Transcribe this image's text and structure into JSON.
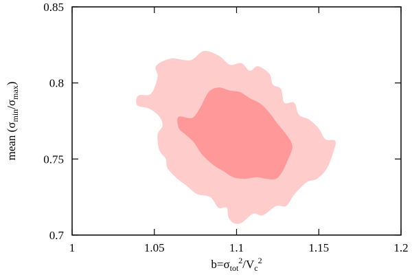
{
  "chart_data": {
    "type": "contour",
    "xlabel": {
      "base": "b=σ",
      "sub1": "tot",
      "sup1": "2",
      "mid": "/V",
      "sub2": "c",
      "sup2": "2"
    },
    "ylabel": {
      "base": "mean (σ",
      "sub1": "min",
      "mid": "/σ",
      "sub2": "max",
      "end": ")"
    },
    "xlim": [
      1.0,
      1.2
    ],
    "ylim": [
      0.7,
      0.85
    ],
    "xticks": [
      1.0,
      1.05,
      1.1,
      1.15,
      1.2
    ],
    "xtick_labels": [
      "1",
      "1.05",
      "1.1",
      "1.15",
      "1.2"
    ],
    "yticks": [
      0.7,
      0.75,
      0.8,
      0.85
    ],
    "ytick_labels": [
      "0.7",
      "0.75",
      "0.8",
      "0.85"
    ],
    "grid": false,
    "regions": [
      {
        "name": "outer",
        "color": "#ffcccc",
        "points": [
          [
            1.041,
            0.792
          ],
          [
            1.048,
            0.793
          ],
          [
            1.052,
            0.804
          ],
          [
            1.051,
            0.811
          ],
          [
            1.06,
            0.816
          ],
          [
            1.072,
            0.815
          ],
          [
            1.08,
            0.821
          ],
          [
            1.089,
            0.818
          ],
          [
            1.096,
            0.812
          ],
          [
            1.103,
            0.813
          ],
          [
            1.108,
            0.808
          ],
          [
            1.113,
            0.811
          ],
          [
            1.12,
            0.806
          ],
          [
            1.122,
            0.799
          ],
          [
            1.127,
            0.796
          ],
          [
            1.129,
            0.787
          ],
          [
            1.135,
            0.787
          ],
          [
            1.138,
            0.779
          ],
          [
            1.144,
            0.776
          ],
          [
            1.15,
            0.77
          ],
          [
            1.154,
            0.763
          ],
          [
            1.16,
            0.762
          ],
          [
            1.159,
            0.755
          ],
          [
            1.155,
            0.744
          ],
          [
            1.149,
            0.737
          ],
          [
            1.143,
            0.735
          ],
          [
            1.137,
            0.729
          ],
          [
            1.134,
            0.725
          ],
          [
            1.13,
            0.719
          ],
          [
            1.124,
            0.719
          ],
          [
            1.116,
            0.713
          ],
          [
            1.11,
            0.714
          ],
          [
            1.103,
            0.708
          ],
          [
            1.098,
            0.708
          ],
          [
            1.095,
            0.712
          ],
          [
            1.094,
            0.718
          ],
          [
            1.089,
            0.718
          ],
          [
            1.084,
            0.725
          ],
          [
            1.076,
            0.727
          ],
          [
            1.069,
            0.733
          ],
          [
            1.064,
            0.737
          ],
          [
            1.058,
            0.744
          ],
          [
            1.057,
            0.75
          ],
          [
            1.053,
            0.756
          ],
          [
            1.052,
            0.766
          ],
          [
            1.055,
            0.772
          ],
          [
            1.053,
            0.778
          ],
          [
            1.047,
            0.783
          ],
          [
            1.04,
            0.785
          ],
          [
            1.039,
            0.789
          ]
        ]
      },
      {
        "name": "inner",
        "color": "#ff9999",
        "points": [
          [
            1.066,
            0.778
          ],
          [
            1.073,
            0.777
          ],
          [
            1.078,
            0.784
          ],
          [
            1.083,
            0.794
          ],
          [
            1.089,
            0.797
          ],
          [
            1.096,
            0.795
          ],
          [
            1.102,
            0.794
          ],
          [
            1.108,
            0.79
          ],
          [
            1.115,
            0.786
          ],
          [
            1.121,
            0.779
          ],
          [
            1.125,
            0.773
          ],
          [
            1.131,
            0.765
          ],
          [
            1.134,
            0.758
          ],
          [
            1.131,
            0.749
          ],
          [
            1.128,
            0.742
          ],
          [
            1.124,
            0.737
          ],
          [
            1.118,
            0.737
          ],
          [
            1.112,
            0.738
          ],
          [
            1.105,
            0.737
          ],
          [
            1.098,
            0.738
          ],
          [
            1.092,
            0.742
          ],
          [
            1.086,
            0.746
          ],
          [
            1.079,
            0.753
          ],
          [
            1.074,
            0.761
          ],
          [
            1.069,
            0.766
          ],
          [
            1.065,
            0.77
          ],
          [
            1.064,
            0.776
          ]
        ]
      }
    ]
  }
}
